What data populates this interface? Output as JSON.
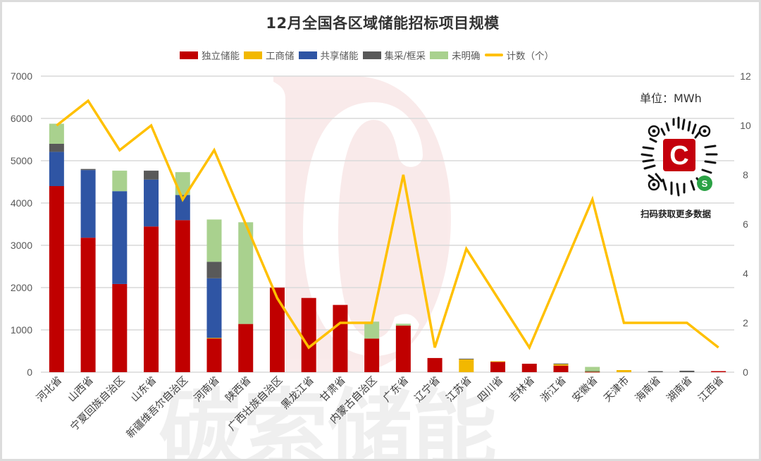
{
  "title": "12月全国各区域储能招标项目规模",
  "unit_label": "单位：MWh",
  "qr_caption": "扫码获取更多数据",
  "watermark": {
    "text": "碳索储能",
    "logo": "DC"
  },
  "colors": {
    "独立储能": "#c00000",
    "工商储": "#f2b800",
    "共享储能": "#2f55a4",
    "集采/框采": "#595959",
    "未明确": "#a9d18e",
    "计数（个）": "#ffc000",
    "grid": "#d9d9d9",
    "axis_text": "#595959"
  },
  "legend": [
    {
      "label": "独立储能",
      "type": "bar",
      "color": "#c00000"
    },
    {
      "label": "工商储",
      "type": "bar",
      "color": "#f2b800"
    },
    {
      "label": "共享储能",
      "type": "bar",
      "color": "#2f55a4"
    },
    {
      "label": "集采/框采",
      "type": "bar",
      "color": "#595959"
    },
    {
      "label": "未明确",
      "type": "bar",
      "color": "#a9d18e"
    },
    {
      "label": "计数（个）",
      "type": "line",
      "color": "#ffc000"
    }
  ],
  "chart_data": {
    "type": "bar",
    "subtype": "stacked bar with line on secondary axis",
    "title": "12月全国各区域储能招标项目规模",
    "xlabel": "",
    "ylabel": "MWh",
    "y2label": "计数（个）",
    "ylim": [
      0,
      7000
    ],
    "yticks": [
      0,
      1000,
      2000,
      3000,
      4000,
      5000,
      6000,
      7000
    ],
    "y2lim": [
      0,
      12
    ],
    "y2ticks": [
      0,
      2,
      4,
      6,
      8,
      10,
      12
    ],
    "grid": true,
    "legend_position": "top",
    "categories": [
      "河北省",
      "山西省",
      "宁夏回族自治区",
      "山东省",
      "新疆维吾尔自治区",
      "河南省",
      "陕西省",
      "广西壮族自治区",
      "黑龙江省",
      "甘肃省",
      "内蒙古自治区",
      "广东省",
      "辽宁省",
      "江苏省",
      "四川省",
      "吉林省",
      "浙江省",
      "安徽省",
      "天津市",
      "海南省",
      "湖南省",
      "江西省"
    ],
    "series": [
      {
        "name": "独立储能",
        "axis": "left",
        "type": "bar",
        "values": [
          4400,
          3180,
          2085,
          3445,
          3595,
          800,
          1140,
          2000,
          1755,
          1590,
          795,
          1100,
          335,
          0,
          250,
          200,
          155,
          10,
          0,
          0,
          0,
          25
        ]
      },
      {
        "name": "工商储",
        "axis": "left",
        "type": "bar",
        "values": [
          0,
          0,
          0,
          0,
          0,
          10,
          0,
          0,
          0,
          0,
          0,
          0,
          0,
          305,
          8,
          0,
          35,
          10,
          50,
          0,
          0,
          0
        ]
      },
      {
        "name": "共享储能",
        "axis": "left",
        "type": "bar",
        "values": [
          810,
          1600,
          2195,
          1110,
          595,
          1410,
          0,
          0,
          0,
          0,
          0,
          0,
          0,
          0,
          0,
          0,
          0,
          0,
          0,
          0,
          0,
          0
        ]
      },
      {
        "name": "集采/框采",
        "axis": "left",
        "type": "bar",
        "values": [
          190,
          25,
          0,
          210,
          0,
          390,
          0,
          0,
          0,
          0,
          0,
          0,
          0,
          15,
          0,
          0,
          15,
          5,
          0,
          25,
          35,
          0
        ]
      },
      {
        "name": "未明确",
        "axis": "left",
        "type": "bar",
        "values": [
          475,
          0,
          485,
          0,
          540,
          1000,
          2405,
          0,
          0,
          0,
          400,
          45,
          0,
          0,
          0,
          0,
          0,
          100,
          0,
          0,
          0,
          0
        ]
      },
      {
        "name": "计数（个）",
        "axis": "right",
        "type": "line",
        "values": [
          10,
          11,
          9,
          10,
          7,
          9,
          6,
          3,
          1,
          2,
          2,
          8,
          1,
          5,
          3,
          1,
          4,
          7,
          2,
          2,
          2,
          1
        ]
      }
    ]
  }
}
